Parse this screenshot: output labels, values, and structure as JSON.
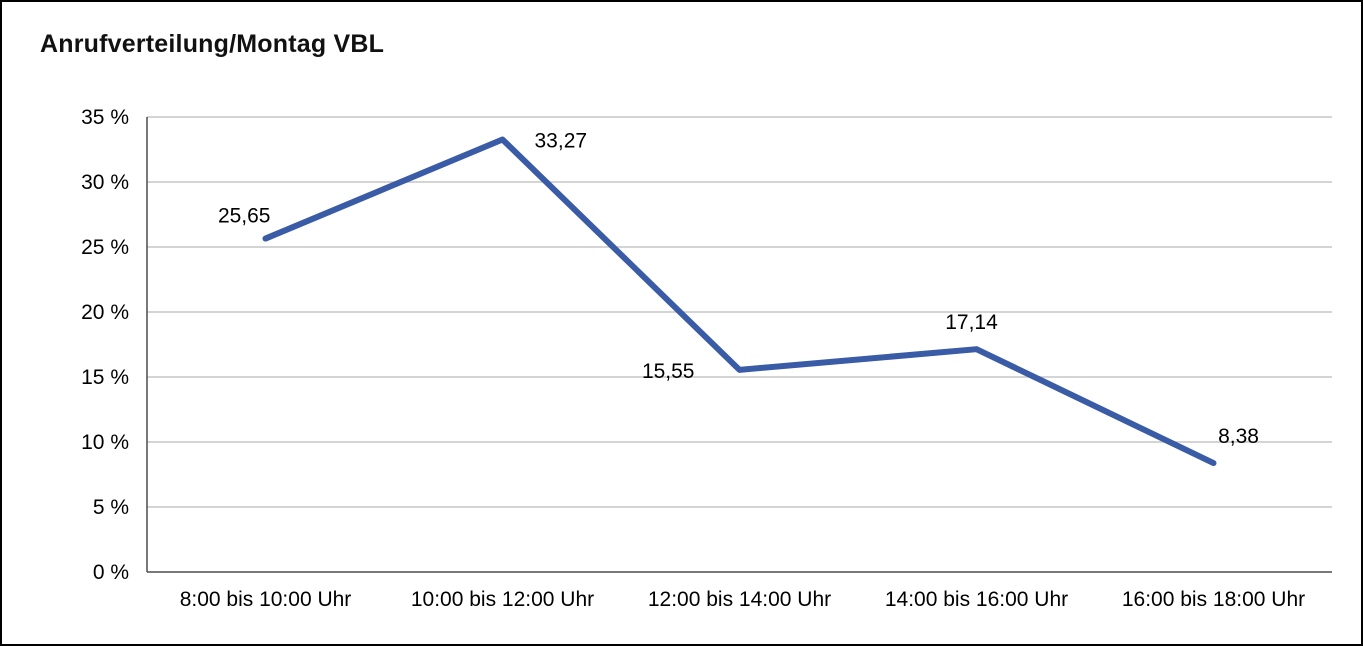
{
  "chart_data": {
    "type": "line",
    "title": "Anrufverteilung/Montag VBL",
    "categories": [
      "8:00 bis 10:00 Uhr",
      "10:00 bis 12:00 Uhr",
      "12:00 bis 14:00 Uhr",
      "14:00 bis 16:00 Uhr",
      "16:00 bis 18:00 Uhr"
    ],
    "values": [
      25.65,
      33.27,
      15.55,
      17.14,
      8.38
    ],
    "value_labels": [
      "25,65",
      "33,27",
      "15,55",
      "17,14",
      "8,38"
    ],
    "xlabel": "",
    "ylabel": "",
    "ylim": [
      0,
      35
    ],
    "ytick_step": 5,
    "ytick_suffix": " %",
    "grid": true,
    "legend": "none",
    "line_color": "#3A5BA5",
    "grid_color": "#C6C6C6",
    "axis_color": "#4D4D4D",
    "label_color": "#000000"
  }
}
